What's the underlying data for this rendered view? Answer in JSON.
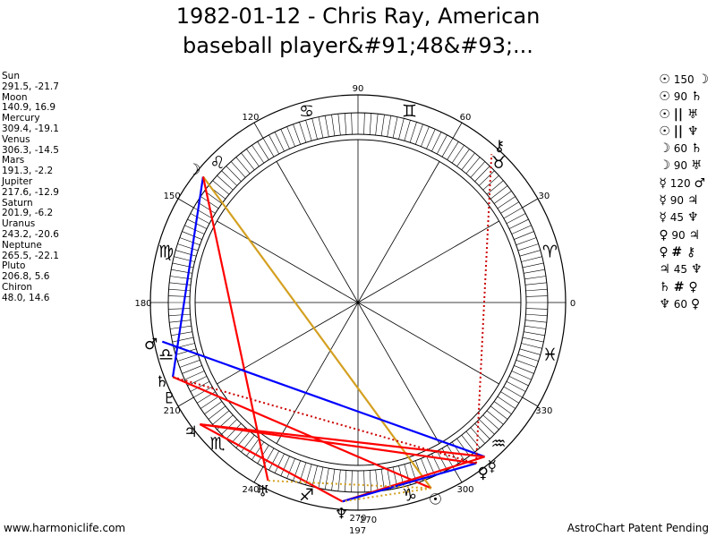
{
  "title": "1982-01-12 - Chris Ray, American\nbaseball player&#91;48&#93;...",
  "footer": {
    "left": "www.harmoniclife.com",
    "right": "AstroChart Patent Pending"
  },
  "colors": {
    "opposition_square": "#ff0000",
    "trine_sextile": "#0000ff",
    "quincunx": "#d4a020",
    "dotted": "#cc0000"
  },
  "chart_data": {
    "type": "wheel",
    "ascendant_degree": 180,
    "degree_labels": [
      "0",
      "30",
      "60",
      "90",
      "120",
      "150",
      "180",
      "210",
      "240",
      "270",
      "300",
      "330"
    ],
    "zodiac_signs": [
      {
        "name": "Aries",
        "glyph": "♈"
      },
      {
        "name": "Taurus",
        "glyph": "♉"
      },
      {
        "name": "Gemini",
        "glyph": "♊"
      },
      {
        "name": "Cancer",
        "glyph": "♋"
      },
      {
        "name": "Leo",
        "glyph": "♌"
      },
      {
        "name": "Virgo",
        "glyph": "♍"
      },
      {
        "name": "Libra",
        "glyph": "♎"
      },
      {
        "name": "Scorpio",
        "glyph": "♏"
      },
      {
        "name": "Sagittarius",
        "glyph": "♐"
      },
      {
        "name": "Capricorn",
        "glyph": "♑"
      },
      {
        "name": "Aquarius",
        "glyph": "♒"
      },
      {
        "name": "Pisces",
        "glyph": "♓"
      }
    ],
    "planets": [
      {
        "name": "Sun",
        "lon": 291.5,
        "lat": -21.7,
        "glyph": "☉",
        "text": "291.5, -21.7"
      },
      {
        "name": "Moon",
        "lon": 140.9,
        "lat": 16.9,
        "glyph": "☽",
        "text": "140.9, 16.9"
      },
      {
        "name": "Mercury",
        "lon": 309.4,
        "lat": -19.1,
        "glyph": "☿",
        "text": "309.4, -19.1"
      },
      {
        "name": "Venus",
        "lon": 306.3,
        "lat": -14.5,
        "glyph": "♀",
        "text": "306.3, -14.5"
      },
      {
        "name": "Mars",
        "lon": 191.3,
        "lat": -2.2,
        "glyph": "♂",
        "text": "191.3, -2.2"
      },
      {
        "name": "Jupiter",
        "lon": 217.6,
        "lat": -12.9,
        "glyph": "♃",
        "text": "217.6, -12.9"
      },
      {
        "name": "Saturn",
        "lon": 201.9,
        "lat": -6.2,
        "glyph": "♄",
        "text": "201.9, -6.2"
      },
      {
        "name": "Uranus",
        "lon": 243.2,
        "lat": -20.6,
        "glyph": "♅",
        "text": "243.2, -20.6"
      },
      {
        "name": "Neptune",
        "lon": 265.5,
        "lat": -22.1,
        "glyph": "♆",
        "text": "265.5, -22.1"
      },
      {
        "name": "Pluto",
        "lon": 206.8,
        "lat": 5.6,
        "glyph": "♇",
        "text": "206.8, 5.6"
      },
      {
        "name": "Chiron",
        "lon": 48.0,
        "lat": 14.6,
        "glyph": "⚷",
        "text": "48.0, 14.6"
      }
    ],
    "extra_labels": [
      "270",
      "197"
    ],
    "aspects": [
      {
        "p1": "Sun",
        "g1": "☉",
        "angle": "150",
        "p2": "Moon",
        "g2": "☽",
        "type": "quincunx"
      },
      {
        "p1": "Sun",
        "g1": "☉",
        "angle": "90",
        "p2": "Saturn",
        "g2": "♄",
        "type": "square"
      },
      {
        "p1": "Sun",
        "g1": "☉",
        "angle": "||",
        "p2": "Uranus",
        "g2": "♅",
        "type": "parallel"
      },
      {
        "p1": "Sun",
        "g1": "☉",
        "angle": "||",
        "p2": "Neptune",
        "g2": "♆",
        "type": "parallel"
      },
      {
        "p1": "Moon",
        "g1": "☽",
        "angle": "60",
        "p2": "Saturn",
        "g2": "♄",
        "type": "sextile"
      },
      {
        "p1": "Moon",
        "g1": "☽",
        "angle": "90",
        "p2": "Uranus",
        "g2": "♅",
        "type": "square"
      },
      {
        "p1": "Mercury",
        "g1": "☿",
        "angle": "120",
        "p2": "Mars",
        "g2": "♂",
        "type": "trine"
      },
      {
        "p1": "Mercury",
        "g1": "☿",
        "angle": "90",
        "p2": "Jupiter",
        "g2": "♃",
        "type": "square"
      },
      {
        "p1": "Mercury",
        "g1": "☿",
        "angle": "45",
        "p2": "Neptune",
        "g2": "♆",
        "type": "semisquare"
      },
      {
        "p1": "Venus",
        "g1": "♀",
        "angle": "90",
        "p2": "Jupiter",
        "g2": "♃",
        "type": "square"
      },
      {
        "p1": "Venus",
        "g1": "♀",
        "angle": "#",
        "p2": "Chiron",
        "g2": "⚷",
        "type": "contraparallel"
      },
      {
        "p1": "Jupiter",
        "g1": "♃",
        "angle": "45",
        "p2": "Neptune",
        "g2": "♆",
        "type": "semisquare"
      },
      {
        "p1": "Saturn",
        "g1": "♄",
        "angle": "#",
        "p2": "Venus",
        "g2": "♀",
        "type": "contraparallel"
      },
      {
        "p1": "Neptune",
        "g1": "♆",
        "angle": "60",
        "p2": "Venus",
        "g2": "♀",
        "type": "sextile"
      }
    ]
  }
}
